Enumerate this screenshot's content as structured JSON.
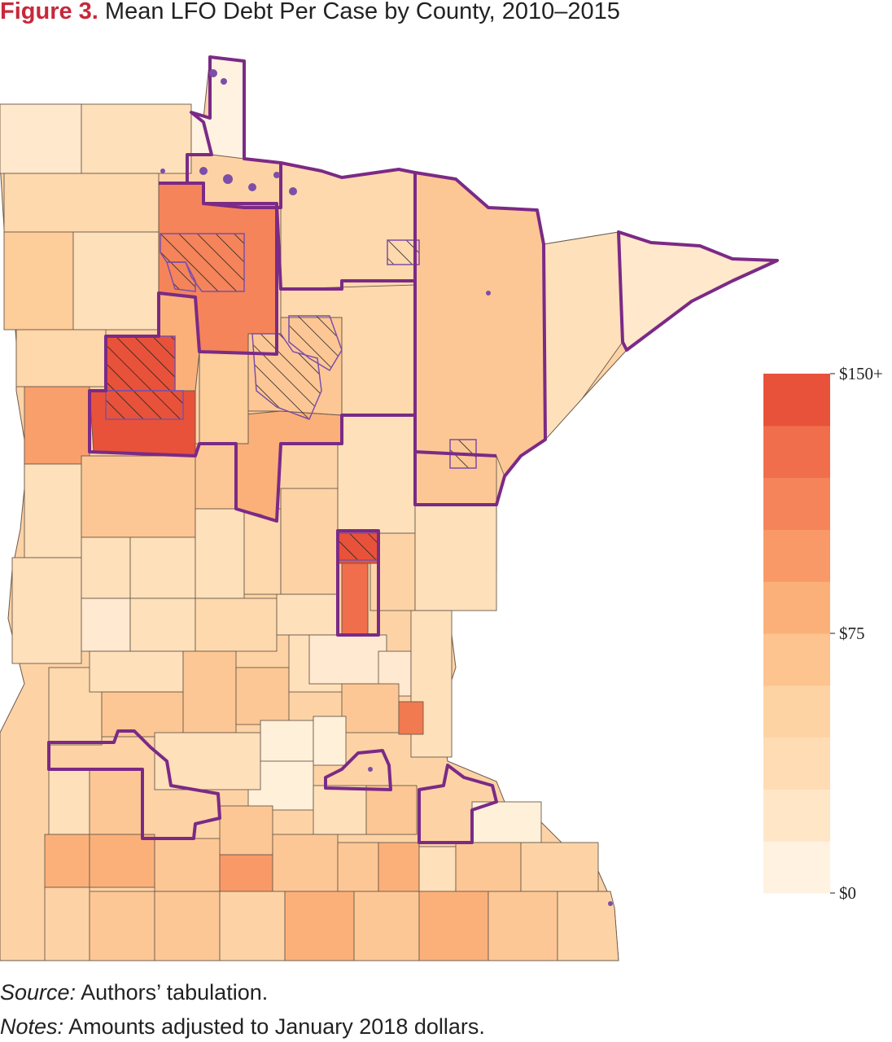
{
  "figure": {
    "label": "Figure 3.",
    "title": "Mean LFO Debt Per Case by County, 2010–2015"
  },
  "legend": {
    "ticks": [
      "$150+",
      "$75",
      "$0"
    ],
    "bins": [
      {
        "color": "#fff2e0"
      },
      {
        "color": "#ffe6c7"
      },
      {
        "color": "#ffdcb4"
      },
      {
        "color": "#fed3a3"
      },
      {
        "color": "#fdc48f"
      },
      {
        "color": "#fbb07a"
      },
      {
        "color": "#f89967"
      },
      {
        "color": "#f5845a"
      },
      {
        "color": "#f06e4c"
      },
      {
        "color": "#e8523a"
      }
    ]
  },
  "colors": {
    "reservation_boundary": "#7b2a86",
    "county_line": "#6d5a4a",
    "tribal_land_point": "#7b4fa8",
    "hatch": "#222222"
  },
  "source": {
    "label": "Source:",
    "text": "Authors’ tabulation."
  },
  "notes": {
    "label": "Notes:",
    "text": "Amounts adjusted to January 2018 dollars."
  }
}
